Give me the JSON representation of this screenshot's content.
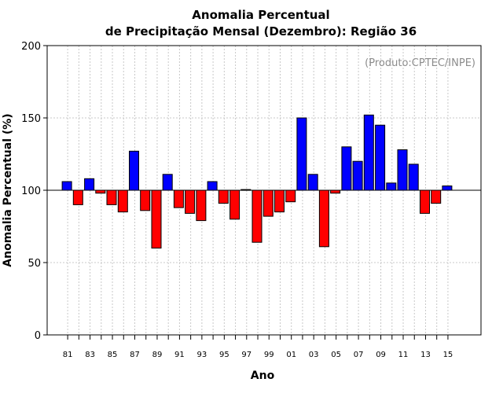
{
  "chart_data": {
    "type": "bar",
    "title_line1": "Anomalia Percentual",
    "title_line2": "de Precipitação Mensal (Dezembro): Região 36",
    "xlabel": "Ano",
    "ylabel": "Anomalia Percentual (%)",
    "watermark": "(Produto:CPTEC/INPE)",
    "ylim": [
      0,
      200
    ],
    "yticks": [
      "0",
      "50",
      "100",
      "150",
      "200"
    ],
    "baseline": 100,
    "grid": true,
    "colors": {
      "above": "#0000ff",
      "below": "#ff0000",
      "edge": "#000000",
      "grid": "#c8c8c8"
    },
    "categories": [
      "81",
      "82",
      "83",
      "84",
      "85",
      "86",
      "87",
      "88",
      "89",
      "90",
      "91",
      "92",
      "93",
      "94",
      "95",
      "96",
      "97",
      "98",
      "99",
      "00",
      "01",
      "02",
      "03",
      "04",
      "05",
      "06",
      "07",
      "08",
      "09",
      "10",
      "11",
      "12",
      "13",
      "14",
      "15"
    ],
    "xtick_labels": [
      "81",
      "83",
      "85",
      "87",
      "89",
      "91",
      "93",
      "95",
      "97",
      "99",
      "01",
      "03",
      "05",
      "07",
      "09",
      "11",
      "13",
      "15"
    ],
    "values": [
      106,
      90,
      108,
      98,
      90,
      85,
      127,
      86,
      60,
      111,
      88,
      84,
      79,
      106,
      91,
      80,
      100.5,
      64,
      82,
      85,
      92,
      150,
      111,
      61,
      98,
      130,
      120,
      152,
      145,
      105,
      128,
      118,
      84,
      91,
      103
    ]
  }
}
